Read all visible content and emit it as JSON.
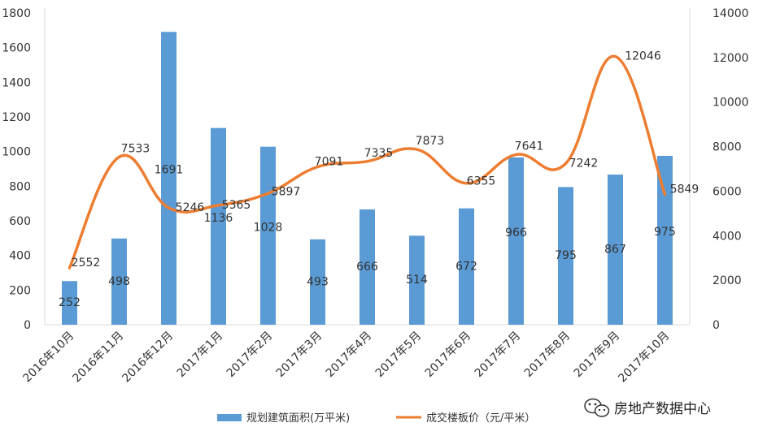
{
  "chart_data": {
    "type": "bar",
    "categories": [
      "2016年10月",
      "2016年11月",
      "2016年12月",
      "2017年1月",
      "2017年2月",
      "2017年3月",
      "2017年4月",
      "2017年5月",
      "2017年6月",
      "2017年7月",
      "2017年8月",
      "2017年9月",
      "2017年10月"
    ],
    "series": [
      {
        "name": "规划建筑面积(万平米)",
        "type": "bar",
        "axis": "left",
        "color": "#5b9bd5",
        "values": [
          252,
          498,
          1691,
          1136,
          1028,
          493,
          666,
          514,
          672,
          966,
          795,
          867,
          975
        ]
      },
      {
        "name": "成交楼板价（元/平米）",
        "type": "line",
        "axis": "right",
        "color": "#ed7d31",
        "values": [
          2552,
          7533,
          5246,
          5365,
          5897,
          7091,
          7335,
          7873,
          6355,
          7641,
          7242,
          12046,
          5849
        ]
      }
    ],
    "ylim_left": [
      0,
      1800
    ],
    "yticks_left": [
      0,
      200,
      400,
      600,
      800,
      1000,
      1200,
      1400,
      1600,
      1800
    ],
    "ylim_right": [
      0,
      14000
    ],
    "yticks_right": [
      0,
      2000,
      4000,
      6000,
      8000,
      10000,
      12000,
      14000
    ],
    "legend_position": "bottom"
  },
  "brand": {
    "name": "房地产数据中心",
    "icon": "wechat-icon"
  }
}
